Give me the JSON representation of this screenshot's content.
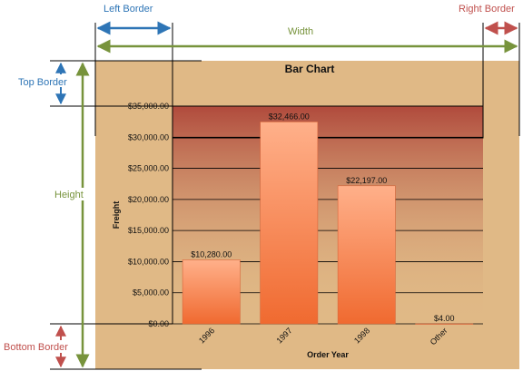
{
  "annotations": {
    "left_border": "Left Border",
    "right_border": "Right Border",
    "width": "Width",
    "top_border": "Top Border",
    "height": "Height",
    "bottom_border": "Bottom Border"
  },
  "colors": {
    "blue": "#2e75b6",
    "red": "#c0504d",
    "green": "#77933c",
    "background": "#e0b986",
    "bar_top": "#ffb08a",
    "bar_bottom": "#f06a30",
    "band_top": "#b04a3c",
    "band_bottom": "#e0b986"
  },
  "chart_data": {
    "type": "bar",
    "title": "Bar Chart",
    "xlabel": "Order Year",
    "ylabel": "Freight",
    "categories": [
      "1996",
      "1997",
      "1998",
      "Other"
    ],
    "values": [
      10280,
      32466,
      22197,
      4
    ],
    "data_labels": [
      "$10,280.00",
      "$32,466.00",
      "$22,197.00",
      "$4.00"
    ],
    "y_ticks": [
      "$0.00",
      "$5,000.00",
      "$10,000.00",
      "$15,000.00",
      "$20,000.00",
      "$25,000.00",
      "$30,000.00",
      "$35,000.00"
    ],
    "ylim": [
      0,
      35000
    ],
    "grid": true,
    "legend": "none"
  }
}
